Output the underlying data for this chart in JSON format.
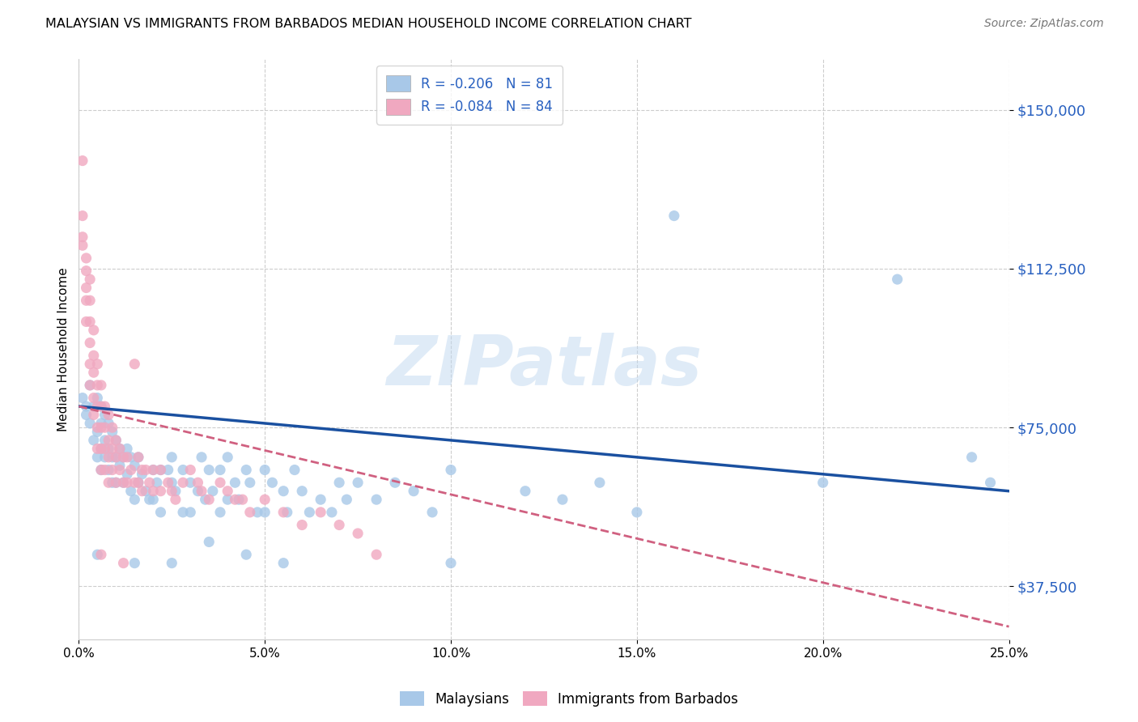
{
  "title": "MALAYSIAN VS IMMIGRANTS FROM BARBADOS MEDIAN HOUSEHOLD INCOME CORRELATION CHART",
  "source": "Source: ZipAtlas.com",
  "ylabel": "Median Household Income",
  "yticks": [
    37500,
    75000,
    112500,
    150000
  ],
  "ytick_labels": [
    "$37,500",
    "$75,000",
    "$112,500",
    "$150,000"
  ],
  "xmin": 0.0,
  "xmax": 0.25,
  "ymin": 25000,
  "ymax": 162000,
  "legend_bottom": [
    "Malaysians",
    "Immigrants from Barbados"
  ],
  "blue_scatter": "#a8c8e8",
  "pink_scatter": "#f0a8c0",
  "line_blue": "#1a50a0",
  "line_pink": "#d06080",
  "tick_color": "#2860c0",
  "watermark": "ZIPatlas",
  "malaysian_scatter": [
    [
      0.001,
      82000
    ],
    [
      0.002,
      80000
    ],
    [
      0.002,
      78000
    ],
    [
      0.003,
      85000
    ],
    [
      0.003,
      76000
    ],
    [
      0.004,
      80000
    ],
    [
      0.004,
      72000
    ],
    [
      0.005,
      82000
    ],
    [
      0.005,
      74000
    ],
    [
      0.005,
      68000
    ],
    [
      0.006,
      80000
    ],
    [
      0.006,
      76000
    ],
    [
      0.006,
      70000
    ],
    [
      0.006,
      65000
    ],
    [
      0.007,
      78000
    ],
    [
      0.007,
      72000
    ],
    [
      0.007,
      68000
    ],
    [
      0.008,
      76000
    ],
    [
      0.008,
      70000
    ],
    [
      0.008,
      65000
    ],
    [
      0.009,
      74000
    ],
    [
      0.009,
      68000
    ],
    [
      0.009,
      62000
    ],
    [
      0.01,
      72000
    ],
    [
      0.01,
      68000
    ],
    [
      0.01,
      62000
    ],
    [
      0.011,
      70000
    ],
    [
      0.011,
      66000
    ],
    [
      0.012,
      68000
    ],
    [
      0.012,
      62000
    ],
    [
      0.013,
      70000
    ],
    [
      0.013,
      64000
    ],
    [
      0.014,
      68000
    ],
    [
      0.014,
      60000
    ],
    [
      0.015,
      66000
    ],
    [
      0.015,
      58000
    ],
    [
      0.016,
      68000
    ],
    [
      0.016,
      62000
    ],
    [
      0.017,
      64000
    ],
    [
      0.018,
      60000
    ],
    [
      0.019,
      58000
    ],
    [
      0.02,
      65000
    ],
    [
      0.02,
      58000
    ],
    [
      0.021,
      62000
    ],
    [
      0.022,
      65000
    ],
    [
      0.022,
      55000
    ],
    [
      0.024,
      65000
    ],
    [
      0.025,
      68000
    ],
    [
      0.025,
      62000
    ],
    [
      0.026,
      60000
    ],
    [
      0.028,
      65000
    ],
    [
      0.028,
      55000
    ],
    [
      0.03,
      62000
    ],
    [
      0.03,
      55000
    ],
    [
      0.032,
      60000
    ],
    [
      0.033,
      68000
    ],
    [
      0.034,
      58000
    ],
    [
      0.035,
      65000
    ],
    [
      0.036,
      60000
    ],
    [
      0.038,
      65000
    ],
    [
      0.038,
      55000
    ],
    [
      0.04,
      68000
    ],
    [
      0.04,
      58000
    ],
    [
      0.042,
      62000
    ],
    [
      0.043,
      58000
    ],
    [
      0.045,
      65000
    ],
    [
      0.046,
      62000
    ],
    [
      0.048,
      55000
    ],
    [
      0.05,
      65000
    ],
    [
      0.05,
      55000
    ],
    [
      0.052,
      62000
    ],
    [
      0.055,
      60000
    ],
    [
      0.056,
      55000
    ],
    [
      0.058,
      65000
    ],
    [
      0.06,
      60000
    ],
    [
      0.062,
      55000
    ],
    [
      0.065,
      58000
    ],
    [
      0.068,
      55000
    ],
    [
      0.07,
      62000
    ],
    [
      0.072,
      58000
    ],
    [
      0.075,
      62000
    ],
    [
      0.08,
      58000
    ],
    [
      0.085,
      62000
    ],
    [
      0.09,
      60000
    ],
    [
      0.095,
      55000
    ],
    [
      0.1,
      65000
    ],
    [
      0.1,
      43000
    ],
    [
      0.12,
      60000
    ],
    [
      0.13,
      58000
    ],
    [
      0.14,
      62000
    ],
    [
      0.15,
      55000
    ],
    [
      0.16,
      125000
    ],
    [
      0.2,
      62000
    ],
    [
      0.22,
      110000
    ],
    [
      0.24,
      68000
    ],
    [
      0.245,
      62000
    ],
    [
      0.005,
      45000
    ],
    [
      0.015,
      43000
    ],
    [
      0.025,
      43000
    ],
    [
      0.035,
      48000
    ],
    [
      0.045,
      45000
    ],
    [
      0.055,
      43000
    ]
  ],
  "barbados_scatter": [
    [
      0.001,
      138000
    ],
    [
      0.001,
      125000
    ],
    [
      0.001,
      120000
    ],
    [
      0.001,
      118000
    ],
    [
      0.002,
      115000
    ],
    [
      0.002,
      112000
    ],
    [
      0.002,
      108000
    ],
    [
      0.002,
      105000
    ],
    [
      0.002,
      100000
    ],
    [
      0.003,
      110000
    ],
    [
      0.003,
      105000
    ],
    [
      0.003,
      100000
    ],
    [
      0.003,
      95000
    ],
    [
      0.003,
      90000
    ],
    [
      0.003,
      85000
    ],
    [
      0.004,
      98000
    ],
    [
      0.004,
      92000
    ],
    [
      0.004,
      88000
    ],
    [
      0.004,
      82000
    ],
    [
      0.004,
      78000
    ],
    [
      0.005,
      90000
    ],
    [
      0.005,
      85000
    ],
    [
      0.005,
      80000
    ],
    [
      0.005,
      75000
    ],
    [
      0.005,
      70000
    ],
    [
      0.006,
      85000
    ],
    [
      0.006,
      80000
    ],
    [
      0.006,
      75000
    ],
    [
      0.006,
      70000
    ],
    [
      0.006,
      65000
    ],
    [
      0.007,
      80000
    ],
    [
      0.007,
      75000
    ],
    [
      0.007,
      70000
    ],
    [
      0.007,
      65000
    ],
    [
      0.008,
      78000
    ],
    [
      0.008,
      72000
    ],
    [
      0.008,
      68000
    ],
    [
      0.008,
      62000
    ],
    [
      0.009,
      75000
    ],
    [
      0.009,
      70000
    ],
    [
      0.009,
      65000
    ],
    [
      0.01,
      72000
    ],
    [
      0.01,
      68000
    ],
    [
      0.01,
      62000
    ],
    [
      0.011,
      70000
    ],
    [
      0.011,
      65000
    ],
    [
      0.012,
      68000
    ],
    [
      0.012,
      62000
    ],
    [
      0.013,
      68000
    ],
    [
      0.013,
      62000
    ],
    [
      0.014,
      65000
    ],
    [
      0.015,
      90000
    ],
    [
      0.015,
      62000
    ],
    [
      0.016,
      68000
    ],
    [
      0.016,
      62000
    ],
    [
      0.017,
      65000
    ],
    [
      0.017,
      60000
    ],
    [
      0.018,
      65000
    ],
    [
      0.019,
      62000
    ],
    [
      0.02,
      65000
    ],
    [
      0.02,
      60000
    ],
    [
      0.022,
      65000
    ],
    [
      0.022,
      60000
    ],
    [
      0.024,
      62000
    ],
    [
      0.025,
      60000
    ],
    [
      0.026,
      58000
    ],
    [
      0.028,
      62000
    ],
    [
      0.03,
      65000
    ],
    [
      0.032,
      62000
    ],
    [
      0.033,
      60000
    ],
    [
      0.035,
      58000
    ],
    [
      0.038,
      62000
    ],
    [
      0.04,
      60000
    ],
    [
      0.042,
      58000
    ],
    [
      0.044,
      58000
    ],
    [
      0.046,
      55000
    ],
    [
      0.05,
      58000
    ],
    [
      0.055,
      55000
    ],
    [
      0.06,
      52000
    ],
    [
      0.065,
      55000
    ],
    [
      0.07,
      52000
    ],
    [
      0.075,
      50000
    ],
    [
      0.08,
      45000
    ],
    [
      0.006,
      45000
    ],
    [
      0.012,
      43000
    ]
  ]
}
